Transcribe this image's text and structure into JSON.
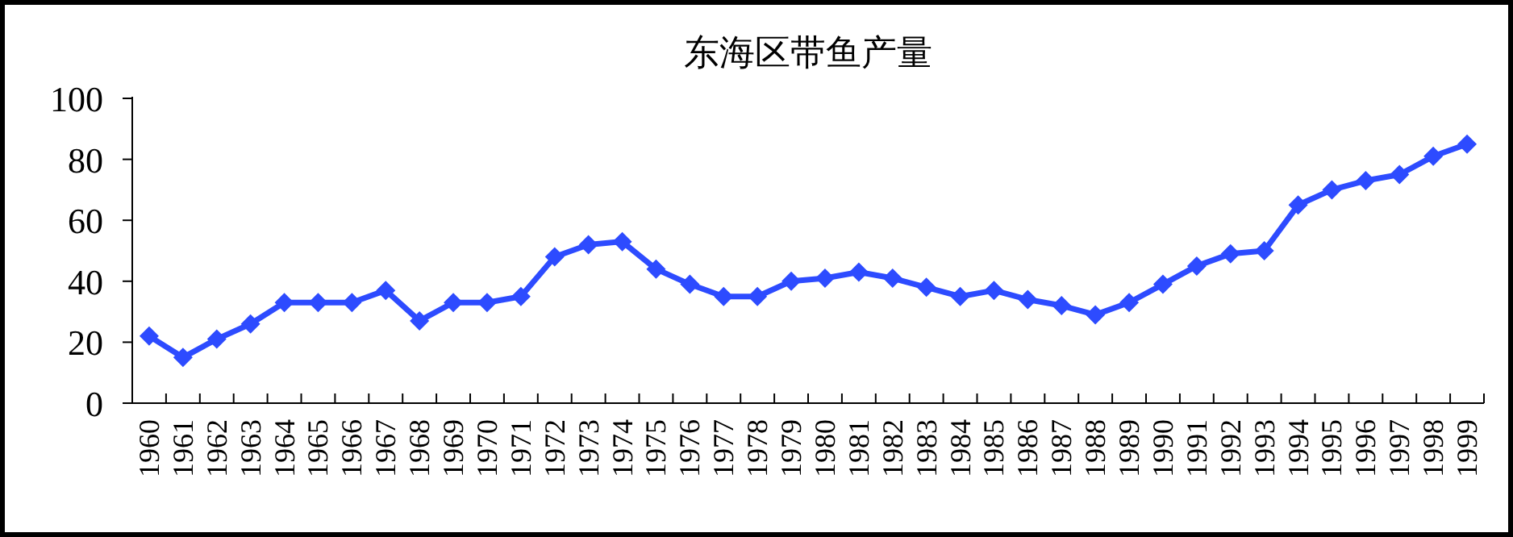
{
  "chart_data": {
    "type": "line",
    "title": "东海区带鱼产量",
    "categories": [
      "1960",
      "1961",
      "1962",
      "1963",
      "1964",
      "1965",
      "1966",
      "1967",
      "1968",
      "1969",
      "1970",
      "1971",
      "1972",
      "1973",
      "1974",
      "1975",
      "1976",
      "1977",
      "1978",
      "1979",
      "1980",
      "1981",
      "1982",
      "1983",
      "1984",
      "1985",
      "1986",
      "1987",
      "1988",
      "1989",
      "1990",
      "1991",
      "1992",
      "1993",
      "1994",
      "1995",
      "1996",
      "1997",
      "1998",
      "1999"
    ],
    "values": [
      22,
      15,
      21,
      26,
      33,
      33,
      33,
      37,
      27,
      33,
      33,
      35,
      48,
      52,
      53,
      44,
      39,
      35,
      35,
      40,
      41,
      43,
      41,
      38,
      35,
      37,
      34,
      32,
      29,
      33,
      39,
      45,
      49,
      50,
      65,
      70,
      73,
      75,
      81,
      85
    ],
    "color": "#2d4bff",
    "marker": "diamond",
    "ylim": [
      0,
      100
    ],
    "yticks": [
      0,
      20,
      40,
      60,
      80,
      100
    ],
    "grid": false
  }
}
